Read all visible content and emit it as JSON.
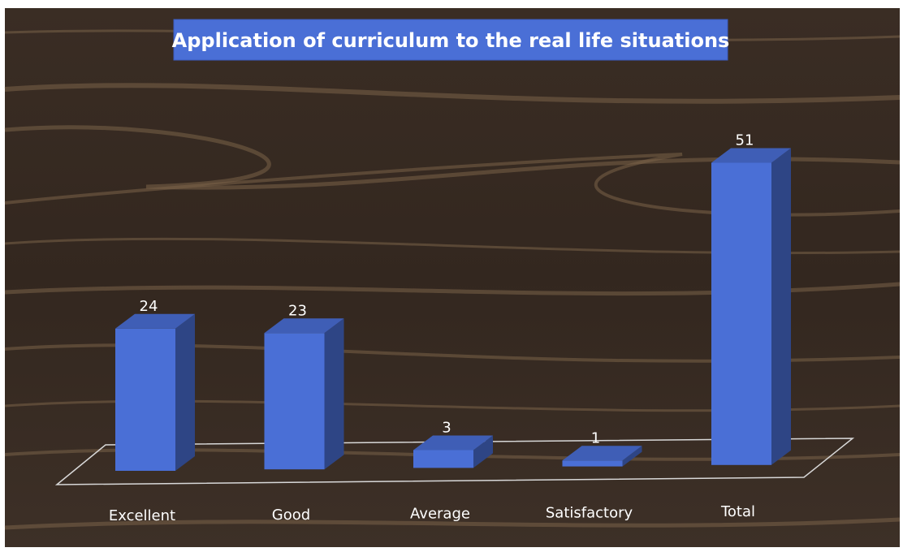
{
  "chart_data": {
    "type": "bar3d",
    "title": "Application of curriculum to the real life situations",
    "categories": [
      "Excellent",
      "Good",
      "Average",
      "Satisfactory",
      "Total"
    ],
    "values": [
      24,
      23,
      3,
      1,
      51
    ],
    "color": "#4a6fd6"
  }
}
